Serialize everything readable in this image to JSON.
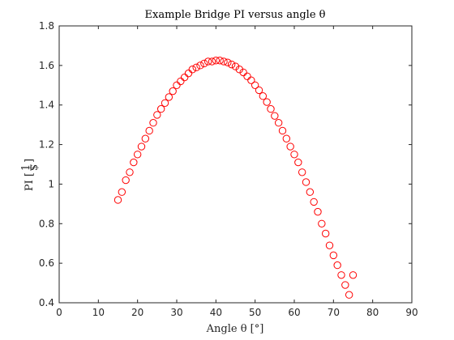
{
  "chart_data": {
    "type": "scatter",
    "title": "Example Bridge PI versus angle θ",
    "xlabel": "Angle θ [°]",
    "ylabel": "PI [1/$]",
    "ylabel_parts": {
      "prefix": "PI [",
      "frac_num": "1",
      "frac_den": "$",
      "suffix": "]"
    },
    "xlim": [
      0,
      90
    ],
    "ylim": [
      0.4,
      1.8
    ],
    "xticks": [
      0,
      10,
      20,
      30,
      40,
      50,
      60,
      70,
      80,
      90
    ],
    "xtick_labels": [
      "0",
      "10",
      "20",
      "30",
      "40",
      "50",
      "60",
      "70",
      "80",
      "90"
    ],
    "yticks": [
      0.4,
      0.6,
      0.8,
      1.0,
      1.2,
      1.4,
      1.6,
      1.8
    ],
    "ytick_labels": [
      "0.4",
      "0.6",
      "0.8",
      "1",
      "1.2",
      "1.4",
      "1.6",
      "1.8"
    ],
    "grid": false,
    "marker": "circle",
    "series": [
      {
        "color": "#ff0000",
        "x": [
          15.0,
          16.0,
          17.0,
          18.0,
          19.0,
          20.0,
          21.0,
          22.0,
          23.0,
          24.0,
          25.0,
          26.0,
          27.0,
          28.0,
          29.0,
          30.0,
          31.0,
          32.0,
          33.0,
          34.0,
          35.0,
          36.0,
          37.0,
          38.0,
          39.0,
          40.0,
          41.0,
          42.0,
          43.0,
          44.0,
          45.0,
          46.0,
          47.0,
          48.0,
          49.0,
          50.0,
          51.0,
          52.0,
          53.0,
          54.0,
          55.0,
          56.0,
          57.0,
          58.0,
          59.0,
          60.0,
          61.0,
          62.0,
          63.0,
          64.0,
          65.0,
          66.0,
          67.0,
          68.0,
          69.0,
          70.0,
          71.0,
          72.0,
          73.0,
          74.0,
          75.0
        ],
        "y": [
          0.92,
          0.96,
          1.02,
          1.06,
          1.11,
          1.15,
          1.19,
          1.23,
          1.27,
          1.31,
          1.35,
          1.38,
          1.41,
          1.44,
          1.47,
          1.5,
          1.52,
          1.54,
          1.56,
          1.58,
          1.59,
          1.6,
          1.61,
          1.62,
          1.62,
          1.625,
          1.625,
          1.62,
          1.615,
          1.605,
          1.595,
          1.58,
          1.565,
          1.545,
          1.525,
          1.5,
          1.475,
          1.445,
          1.415,
          1.38,
          1.345,
          1.31,
          1.27,
          1.23,
          1.19,
          1.15,
          1.11,
          1.06,
          1.01,
          0.96,
          0.91,
          0.86,
          0.8,
          0.75,
          0.69,
          0.64,
          0.59,
          0.54,
          0.49,
          0.44,
          0.54
        ]
      }
    ]
  }
}
